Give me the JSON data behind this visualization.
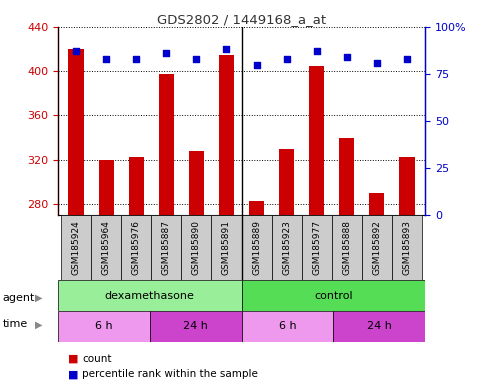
{
  "title": "GDS2802 / 1449168_a_at",
  "samples": [
    "GSM185924",
    "GSM185964",
    "GSM185976",
    "GSM185887",
    "GSM185890",
    "GSM185891",
    "GSM185889",
    "GSM185923",
    "GSM185977",
    "GSM185888",
    "GSM185892",
    "GSM185893"
  ],
  "counts": [
    420,
    320,
    322,
    397,
    328,
    415,
    283,
    330,
    405,
    340,
    290,
    322
  ],
  "percentile_ranks": [
    87,
    83,
    83,
    86,
    83,
    88,
    80,
    83,
    87,
    84,
    81,
    83
  ],
  "ylim_left": [
    270,
    440
  ],
  "ylim_right": [
    0,
    100
  ],
  "yticks_left": [
    280,
    320,
    360,
    400,
    440
  ],
  "yticks_right": [
    0,
    25,
    50,
    75,
    100
  ],
  "bar_color": "#cc0000",
  "dot_color": "#0000cc",
  "agent_groups": [
    {
      "label": "dexamethasone",
      "start": 0,
      "end": 6,
      "color": "#99ee99"
    },
    {
      "label": "control",
      "start": 6,
      "end": 12,
      "color": "#55dd55"
    }
  ],
  "time_groups": [
    {
      "label": "6 h",
      "start": 0,
      "end": 3,
      "color": "#ee99ee"
    },
    {
      "label": "24 h",
      "start": 3,
      "end": 6,
      "color": "#cc44cc"
    },
    {
      "label": "6 h",
      "start": 6,
      "end": 9,
      "color": "#ee99ee"
    },
    {
      "label": "24 h",
      "start": 9,
      "end": 12,
      "color": "#cc44cc"
    }
  ],
  "legend_items": [
    {
      "label": "count",
      "color": "#cc0000"
    },
    {
      "label": "percentile rank within the sample",
      "color": "#0000cc"
    }
  ],
  "background_color": "#ffffff",
  "left_axis_color": "#cc0000",
  "right_axis_color": "#0000cc",
  "tick_label_bg": "#cccccc",
  "agent_label": "agent",
  "time_label": "time"
}
